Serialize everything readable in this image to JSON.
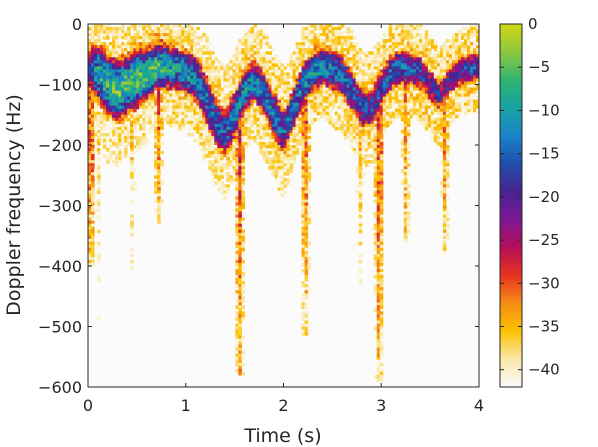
{
  "chart_data": {
    "type": "heatmap",
    "title": "",
    "xlabel": "Time (s)",
    "ylabel": "Doppler frequency (Hz)",
    "xlim": [
      0,
      4
    ],
    "ylim": [
      -600,
      0
    ],
    "x_ticks": [
      0,
      1,
      2,
      3,
      4
    ],
    "y_ticks": [
      0,
      -100,
      -200,
      -300,
      -400,
      -500,
      -600
    ],
    "grid": false,
    "colorbar": {
      "range": [
        -42,
        0
      ],
      "ticks": [
        0,
        -5,
        -10,
        -15,
        -20,
        -25,
        -30,
        -35,
        -40
      ],
      "colormap": [
        "#fbfbfb",
        "#f9e8a9",
        "#fcc200",
        "#f58d16",
        "#e8321e",
        "#b30f59",
        "#7d1894",
        "#46238f",
        "#1f4eab",
        "#1a83c9",
        "#16a3a1",
        "#30b471",
        "#8dc93e",
        "#d0d914"
      ],
      "position": "right"
    },
    "background_db": -42,
    "doppler_traces": [
      {
        "name": "",
        "time": [
          0.0,
          0.1,
          0.2,
          0.3,
          0.4,
          0.5,
          0.6,
          0.7,
          0.8,
          0.9,
          1.0,
          1.1,
          1.2,
          1.3,
          1.4,
          1.5,
          1.6,
          1.7,
          1.8,
          1.9,
          2.0,
          2.1,
          2.2,
          2.3,
          2.4,
          2.5,
          2.6,
          2.7,
          2.8,
          2.9,
          3.0,
          3.1,
          3.2,
          3.3,
          3.4,
          3.5,
          3.6,
          3.7,
          3.8,
          3.9,
          4.0
        ],
        "center_hz": [
          -70,
          -80,
          -100,
          -110,
          -100,
          -90,
          -85,
          -70,
          -70,
          -75,
          -80,
          -90,
          -120,
          -160,
          -180,
          -150,
          -110,
          -95,
          -115,
          -150,
          -180,
          -140,
          -100,
          -80,
          -70,
          -75,
          -85,
          -110,
          -140,
          -140,
          -105,
          -80,
          -70,
          -75,
          -80,
          -100,
          -120,
          -95,
          -80,
          -75,
          -70
        ],
        "peak_db": [
          -20,
          -10,
          -8,
          -6,
          -7,
          -5,
          -7,
          -6,
          -9,
          -11,
          -12,
          -13,
          -13,
          -14,
          -15,
          -14,
          -12,
          -13,
          -15,
          -14,
          -16,
          -14,
          -13,
          -12,
          -12,
          -13,
          -14,
          -15,
          -17,
          -18,
          -16,
          -15,
          -15,
          -16,
          -18,
          -20,
          -21,
          -19,
          -18,
          -17,
          -17
        ],
        "spread_hz": [
          45,
          50,
          55,
          55,
          50,
          50,
          45,
          40,
          40,
          40,
          40,
          45,
          45,
          45,
          45,
          45,
          40,
          40,
          45,
          45,
          45,
          40,
          40,
          35,
          35,
          40,
          40,
          40,
          40,
          40,
          35,
          35,
          35,
          35,
          35,
          35,
          35,
          30,
          30,
          30,
          30
        ]
      }
    ],
    "limb_streaks": [
      {
        "time": 0.03,
        "bottom_hz": -400,
        "peak_db": -26
      },
      {
        "time": 0.1,
        "bottom_hz": -560,
        "peak_db": -36
      },
      {
        "time": 0.45,
        "bottom_hz": -420,
        "peak_db": -34
      },
      {
        "time": 0.72,
        "bottom_hz": -330,
        "peak_db": -28
      },
      {
        "time": 1.55,
        "bottom_hz": -580,
        "peak_db": -27
      },
      {
        "time": 2.22,
        "bottom_hz": -520,
        "peak_db": -28
      },
      {
        "time": 2.78,
        "bottom_hz": -430,
        "peak_db": -34
      },
      {
        "time": 2.98,
        "bottom_hz": -590,
        "peak_db": -27
      },
      {
        "time": 3.25,
        "bottom_hz": -360,
        "peak_db": -30
      },
      {
        "time": 3.65,
        "bottom_hz": -380,
        "peak_db": -30
      }
    ]
  }
}
